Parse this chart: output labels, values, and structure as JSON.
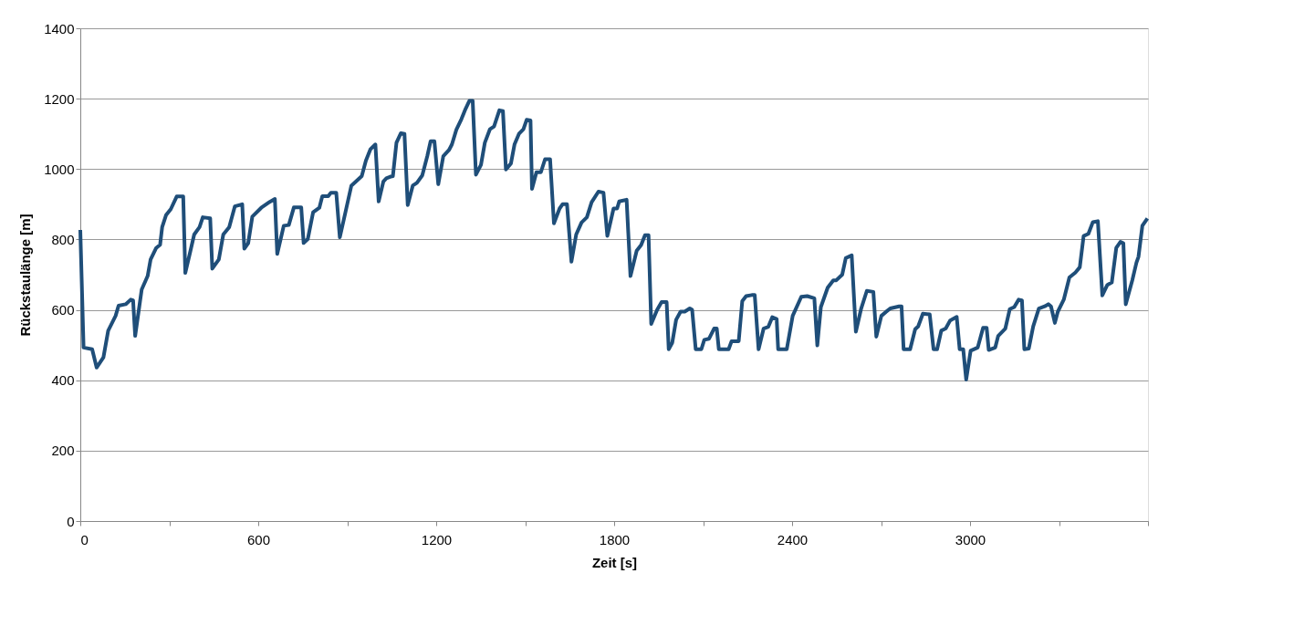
{
  "chart_data": {
    "type": "line",
    "xlabel": "Zeit [s]",
    "ylabel": "Rückstaulänge [m]",
    "xlim": [
      0,
      3600
    ],
    "ylim": [
      0,
      1400
    ],
    "xticks": [
      0,
      {
        "value": 300,
        "label": null
      },
      600,
      {
        "value": 900,
        "label": null
      },
      1200,
      {
        "value": 1500,
        "label": null
      },
      1800,
      {
        "value": 2100,
        "label": null
      },
      2400,
      {
        "value": 2700,
        "label": null
      },
      3000,
      {
        "value": 3300,
        "label": null
      },
      {
        "value": 3600,
        "label": null
      }
    ],
    "yticks": [
      0,
      200,
      400,
      600,
      800,
      1000,
      1200,
      1400
    ],
    "grid": "y",
    "legend": false,
    "marker": "none",
    "line_style": "solid",
    "series": [
      {
        "color": "#1f4e79",
        "x": [
          0,
          11,
          40,
          55,
          78,
          94,
          119,
          129,
          153,
          170,
          178,
          185,
          207,
          227,
          237,
          256,
          269,
          276,
          289,
          305,
          325,
          347,
          354,
          369,
          384,
          402,
          413,
          438,
          445,
          467,
          482,
          502,
          521,
          546,
          553,
          566,
          580,
          610,
          639,
          656,
          664,
          686,
          703,
          720,
          745,
          753,
          767,
          785,
          806,
          816,
          836,
          845,
          863,
          875,
          895,
          914,
          949,
          963,
          978,
          995,
          1006,
          1022,
          1032,
          1044,
          1054,
          1066,
          1081,
          1093,
          1104,
          1121,
          1135,
          1153,
          1170,
          1181,
          1194,
          1207,
          1224,
          1243,
          1253,
          1268,
          1285,
          1299,
          1312,
          1323,
          1334,
          1351,
          1364,
          1381,
          1395,
          1413,
          1425,
          1435,
          1452,
          1464,
          1479,
          1494,
          1505,
          1518,
          1523,
          1538,
          1553,
          1567,
          1584,
          1597,
          1616,
          1626,
          1641,
          1656,
          1672,
          1690,
          1708,
          1724,
          1747,
          1764,
          1777,
          1798,
          1810,
          1817,
          1842,
          1855,
          1876,
          1891,
          1904,
          1916,
          1925,
          1945,
          1960,
          1977,
          1984,
          1996,
          2009,
          2024,
          2038,
          2055,
          2063,
          2075,
          2094,
          2104,
          2120,
          2137,
          2146,
          2153,
          2186,
          2196,
          2220,
          2232,
          2245,
          2264,
          2274,
          2287,
          2304,
          2320,
          2333,
          2348,
          2353,
          2382,
          2402,
          2431,
          2451,
          2475,
          2485,
          2497,
          2520,
          2539,
          2549,
          2569,
          2581,
          2601,
          2615,
          2633,
          2652,
          2674,
          2684,
          2701,
          2716,
          2731,
          2761,
          2769,
          2776,
          2798,
          2815,
          2825,
          2841,
          2864,
          2877,
          2889,
          2903,
          2918,
          2933,
          2955,
          2965,
          2977,
          2987,
          3002,
          3026,
          3044,
          3056,
          3063,
          3085,
          3095,
          3119,
          3134,
          3149,
          3164,
          3175,
          3183,
          3198,
          3213,
          3232,
          3252,
          3264,
          3273,
          3286,
          3296,
          3316,
          3335,
          3355,
          3370,
          3383,
          3399,
          3414,
          3431,
          3446,
          3463,
          3478,
          3493,
          3507,
          3517,
          3525,
          3547,
          3561,
          3568,
          3581,
          3598
        ],
        "values": [
          827,
          493,
          488,
          436,
          465,
          541,
          583,
          612,
          616,
          629,
          627,
          526,
          658,
          696,
          743,
          776,
          785,
          835,
          869,
          886,
          922,
          922,
          705,
          759,
          814,
          835,
          863,
          860,
          717,
          743,
          814,
          835,
          894,
          900,
          774,
          789,
          865,
          890,
          907,
          915,
          759,
          839,
          841,
          891,
          891,
          790,
          801,
          877,
          890,
          923,
          923,
          933,
          933,
          806,
          881,
          953,
          980,
          1024,
          1056,
          1070,
          908,
          965,
          974,
          978,
          980,
          1075,
          1102,
          1100,
          898,
          953,
          961,
          982,
          1037,
          1079,
          1079,
          957,
          1037,
          1054,
          1070,
          1112,
          1142,
          1171,
          1194,
          1194,
          984,
          1012,
          1075,
          1113,
          1121,
          1167,
          1165,
          999,
          1016,
          1070,
          1100,
          1113,
          1140,
          1138,
          944,
          991,
          991,
          1028,
          1028,
          846,
          888,
          900,
          900,
          737,
          814,
          848,
          863,
          906,
          936,
          933,
          810,
          888,
          888,
          908,
          913,
          696,
          768,
          784,
          812,
          812,
          560,
          600,
          622,
          622,
          488,
          507,
          572,
          595,
          595,
          604,
          600,
          488,
          488,
          515,
          518,
          547,
          547,
          488,
          488,
          511,
          511,
          625,
          639,
          642,
          642,
          488,
          547,
          552,
          579,
          574,
          488,
          488,
          583,
          637,
          639,
          633,
          499,
          608,
          663,
          684,
          684,
          700,
          747,
          755,
          538,
          604,
          654,
          651,
          524,
          583,
          594,
          604,
          610,
          610,
          488,
          488,
          545,
          553,
          589,
          587,
          488,
          488,
          541,
          547,
          570,
          580,
          488,
          488,
          402,
          484,
          493,
          549,
          549,
          486,
          493,
          526,
          547,
          602,
          608,
          629,
          627,
          488,
          490,
          553,
          604,
          610,
          616,
          610,
          563,
          595,
          629,
          692,
          706,
          721,
          810,
          816,
          849,
          852,
          641,
          671,
          678,
          776,
          793,
          789,
          616,
          684,
          734,
          751,
          839,
          860
        ]
      }
    ]
  }
}
